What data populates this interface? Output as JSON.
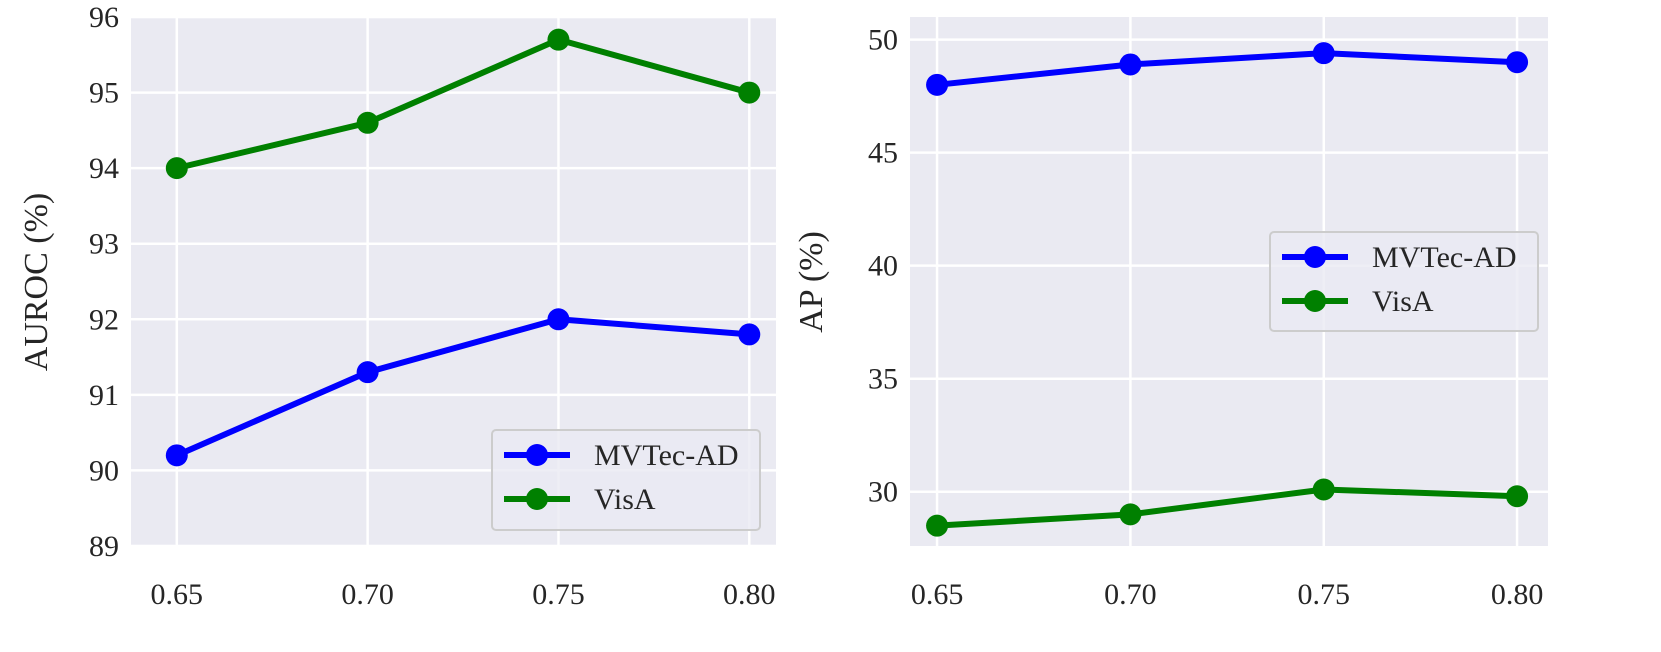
{
  "chart_data": [
    {
      "type": "line",
      "x": [
        0.65,
        0.7,
        0.75,
        0.8
      ],
      "xticks": [
        "0.65",
        "0.70",
        "0.75",
        "0.80"
      ],
      "xlim": [
        0.638,
        0.807
      ],
      "ylim": [
        89,
        96
      ],
      "yticks": [
        "89",
        "90",
        "91",
        "92",
        "93",
        "94",
        "95",
        "96"
      ],
      "ylabel": "AUROC (%)",
      "xlabel": "",
      "grid": true,
      "legend_position": "lower-right",
      "series": [
        {
          "name": "MVTec-AD",
          "color": "#0000ff",
          "values": [
            90.2,
            91.3,
            92.0,
            91.8
          ]
        },
        {
          "name": "VisA",
          "color": "#008000",
          "values": [
            94.0,
            94.6,
            95.7,
            95.0
          ]
        }
      ]
    },
    {
      "type": "line",
      "x": [
        0.65,
        0.7,
        0.75,
        0.8
      ],
      "xticks": [
        "0.65",
        "0.70",
        "0.75",
        "0.80"
      ],
      "xlim": [
        0.643,
        0.808
      ],
      "ylim": [
        27.6,
        51.0
      ],
      "yticks": [
        "30",
        "35",
        "40",
        "45",
        "50"
      ],
      "ylabel": "AP (%)",
      "xlabel": "",
      "grid": true,
      "legend_position": "center-right",
      "series": [
        {
          "name": "MVTec-AD",
          "color": "#0000ff",
          "values": [
            48.0,
            48.9,
            49.4,
            49.0
          ]
        },
        {
          "name": "VisA",
          "color": "#008000",
          "values": [
            28.5,
            29.0,
            30.1,
            29.8
          ]
        }
      ]
    }
  ]
}
